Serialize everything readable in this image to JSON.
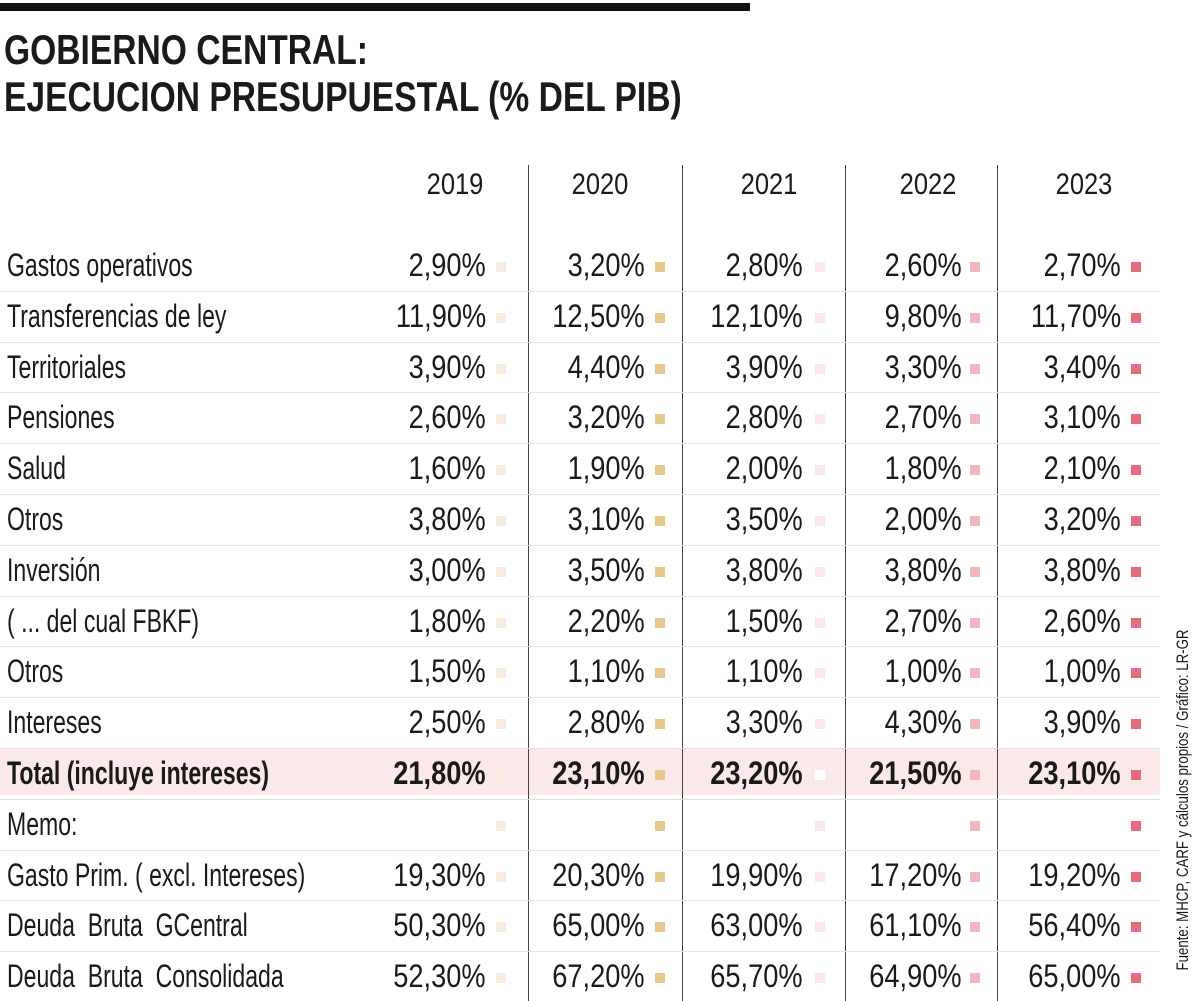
{
  "title": [
    "GOBIERNO CENTRAL:",
    "EJECUCION PRESUPUESTAL (% DEL PIB)"
  ],
  "table": {
    "columns": [
      "2019",
      "2020",
      "2021",
      "2022",
      "2023"
    ],
    "rows": [
      {
        "label": "Gastos operativos",
        "cells": [
          "2,90%",
          "3,20%",
          "2,80%",
          "2,60%",
          "2,70%"
        ]
      },
      {
        "label": "Transferencias de ley",
        "cells": [
          "11,90%",
          "12,50%",
          "12,10%",
          "9,80%",
          "11,70%"
        ]
      },
      {
        "label": "Territoriales",
        "cells": [
          "3,90%",
          "4,40%",
          "3,90%",
          "3,30%",
          "3,40%"
        ]
      },
      {
        "label": "Pensiones",
        "cells": [
          "2,60%",
          "3,20%",
          "2,80%",
          "2,70%",
          "3,10%"
        ]
      },
      {
        "label": "Salud",
        "cells": [
          "1,60%",
          "1,90%",
          "2,00%",
          "1,80%",
          "2,10%"
        ]
      },
      {
        "label": "Otros",
        "cells": [
          "3,80%",
          "3,10%",
          "3,50%",
          "2,00%",
          "3,20%"
        ]
      },
      {
        "label": "Inversión",
        "cells": [
          "3,00%",
          "3,50%",
          "3,80%",
          "3,80%",
          "3,80%"
        ]
      },
      {
        "label": "( ... del cual FBKF)",
        "cells": [
          "1,80%",
          "2,20%",
          "1,50%",
          "2,70%",
          "2,60%"
        ]
      },
      {
        "label": "Otros",
        "cells": [
          "1,50%",
          "1,10%",
          "1,10%",
          "1,00%",
          "1,00%"
        ]
      },
      {
        "label": "Intereses",
        "cells": [
          "2,50%",
          "2,80%",
          "3,30%",
          "4,30%",
          "3,90%"
        ]
      },
      {
        "label": "Total (incluye intereses)",
        "cells": [
          "21,80%",
          "23,10%",
          "23,20%",
          "21,50%",
          "23,10%"
        ],
        "bold": true
      },
      {
        "label": "Memo:"
      },
      {
        "label": "Gasto Prim. ( excl. Intereses)",
        "cells": [
          "19,30%",
          "20,30%",
          "19,90%",
          "17,20%",
          "19,20%"
        ]
      },
      {
        "label": "Deuda  Bruta  GCentral",
        "cells": [
          "50,30%",
          "65,00%",
          "63,00%",
          "61,10%",
          "56,40%"
        ]
      },
      {
        "label": "Deuda  Bruta  Consolidada",
        "cells": [
          "52,30%",
          "67,20%",
          "65,70%",
          "64,90%",
          "65,00%"
        ]
      }
    ]
  },
  "source": "Fuente: MHCP, CARF y cálculos propios / Gráfico: LR-GR"
}
